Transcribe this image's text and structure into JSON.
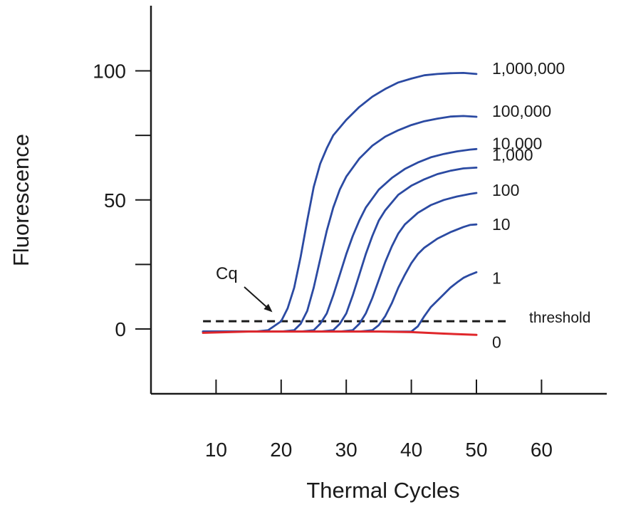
{
  "chart_data": {
    "type": "line",
    "title": "",
    "xlabel": "Thermal Cycles",
    "ylabel": "Fluorescence",
    "xlim": [
      0,
      70
    ],
    "ylim": [
      -25,
      122
    ],
    "x_ticks": [
      10,
      20,
      30,
      40,
      50,
      60
    ],
    "y_ticks": [
      0,
      25,
      50,
      75,
      100
    ],
    "y_tick_labels": [
      "0",
      "",
      "50",
      "",
      "100"
    ],
    "grid": false,
    "legend": "none",
    "series": [
      {
        "name": "1,000,000",
        "color": "#2b4aa2",
        "x": [
          8,
          12,
          16,
          18,
          20,
          21,
          22,
          23,
          24,
          25,
          26,
          27,
          28,
          30,
          32,
          34,
          36,
          38,
          40,
          42,
          44,
          46,
          48,
          50
        ],
        "y": [
          -1,
          -1,
          -1,
          -0.5,
          3,
          8,
          16,
          28,
          42,
          55,
          64,
          70,
          75,
          81,
          86,
          90,
          93,
          95.5,
          97,
          98.3,
          98.8,
          99.1,
          99.2,
          98.8
        ]
      },
      {
        "name": "100,000",
        "color": "#2b4aa2",
        "x": [
          8,
          20,
          22,
          23,
          24,
          25,
          26,
          27,
          28,
          29,
          30,
          32,
          34,
          36,
          38,
          40,
          42,
          44,
          46,
          48,
          50
        ],
        "y": [
          -1,
          -1,
          -0.5,
          2,
          7,
          16,
          27,
          38,
          47,
          54,
          59,
          66,
          71,
          74.5,
          77,
          79,
          80.5,
          81.5,
          82.3,
          82.5,
          82.2
        ]
      },
      {
        "name": "10,000",
        "color": "#2b4aa2",
        "x": [
          8,
          23,
          25,
          26,
          27,
          28,
          29,
          30,
          31,
          32,
          33,
          35,
          37,
          39,
          41,
          43,
          45,
          47,
          49,
          50
        ],
        "y": [
          -1,
          -1,
          -0.5,
          2,
          6,
          13,
          21,
          29,
          36,
          42,
          47,
          54,
          58.5,
          62,
          64.5,
          66.5,
          67.8,
          68.8,
          69.5,
          69.7
        ]
      },
      {
        "name": "1,000",
        "color": "#2b4aa2",
        "x": [
          8,
          26,
          28,
          29,
          30,
          31,
          32,
          33,
          34,
          35,
          36,
          38,
          40,
          42,
          44,
          46,
          48,
          50
        ],
        "y": [
          -1,
          -1,
          -0.5,
          2,
          6,
          13,
          21,
          29,
          36,
          42,
          46,
          52,
          55.5,
          58,
          60,
          61.3,
          62.2,
          62.5
        ]
      },
      {
        "name": "100",
        "color": "#2b4aa2",
        "x": [
          8,
          29,
          31,
          32,
          33,
          34,
          35,
          36,
          37,
          38,
          39,
          41,
          43,
          45,
          47,
          49,
          50
        ],
        "y": [
          -1,
          -1,
          -0.5,
          2,
          6,
          12,
          19,
          26,
          32,
          37,
          40.5,
          45,
          48,
          50,
          51.3,
          52.3,
          52.7
        ]
      },
      {
        "name": "10",
        "color": "#2b4aa2",
        "x": [
          8,
          32,
          34,
          35,
          36,
          37,
          38,
          39,
          40,
          41,
          42,
          44,
          46,
          48,
          49,
          50
        ],
        "y": [
          -1,
          -1,
          -0.5,
          1.5,
          5,
          10,
          16,
          21,
          25.5,
          29,
          31.5,
          35,
          37.5,
          39.5,
          40.3,
          40.5
        ]
      },
      {
        "name": "1",
        "color": "#2b4aa2",
        "x": [
          8,
          40,
          41,
          42,
          43,
          44,
          45,
          46,
          47,
          48,
          49,
          50
        ],
        "y": [
          -1,
          -1,
          1,
          5,
          8.5,
          11,
          13.5,
          16,
          18,
          19.8,
          21,
          22
        ]
      },
      {
        "name": "0",
        "color": "#e0272b",
        "x": [
          8,
          15,
          20,
          25,
          30,
          35,
          40,
          45,
          50
        ],
        "y": [
          -1.5,
          -1,
          -1,
          -1,
          -1,
          -1,
          -1.2,
          -1.8,
          -2.3
        ]
      }
    ],
    "threshold": {
      "label": "threshold",
      "value": 3,
      "x_range": [
        8,
        55
      ]
    },
    "annotations": [
      {
        "text": "Cq",
        "points_to": {
          "x": 19,
          "y": 5
        }
      }
    ],
    "labels": {
      "threshold": "threshold",
      "cq": "Cq"
    }
  }
}
